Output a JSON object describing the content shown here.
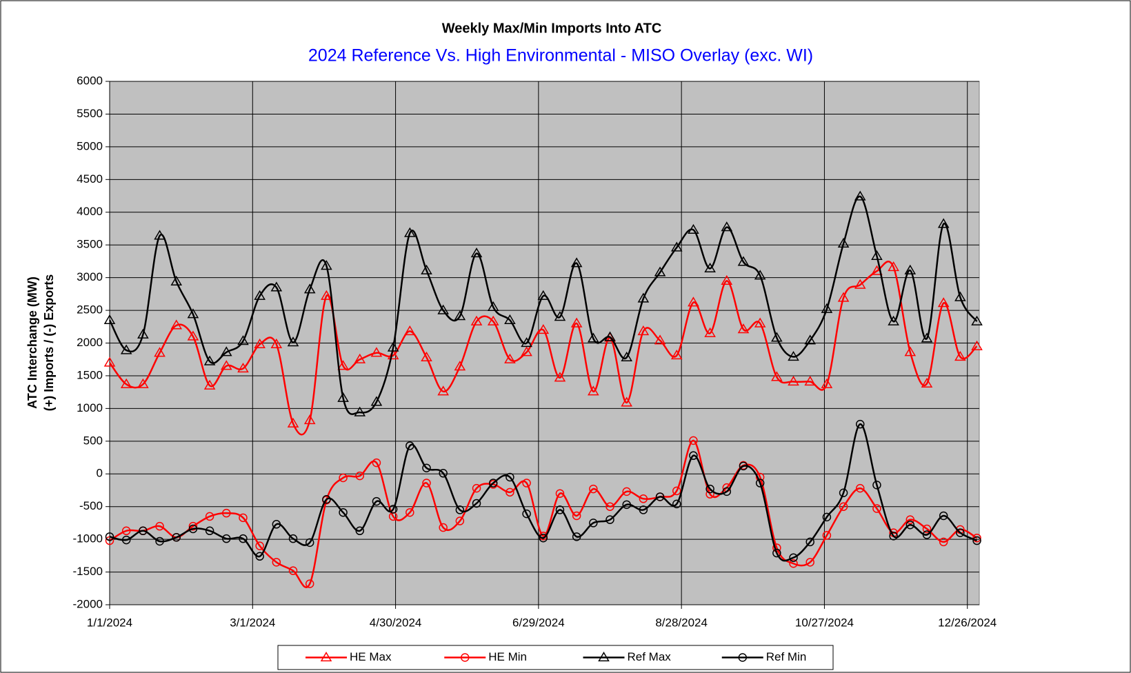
{
  "chart_data": {
    "type": "line",
    "title": "Weekly Max/Min Imports Into ATC",
    "subtitle": "2024 Reference Vs. High Environmental - MISO Overlay (exc. WI)",
    "ylabel": [
      "ATC Interchange (MW)",
      "(+) Imports / (-) Exports"
    ],
    "x": [
      "1/1/2024",
      "1/8/2024",
      "1/15/2024",
      "1/22/2024",
      "1/29/2024",
      "2/5/2024",
      "2/12/2024",
      "2/19/2024",
      "2/26/2024",
      "3/4/2024",
      "3/11/2024",
      "3/18/2024",
      "3/25/2024",
      "4/1/2024",
      "4/8/2024",
      "4/15/2024",
      "4/22/2024",
      "4/29/2024",
      "5/6/2024",
      "5/13/2024",
      "5/20/2024",
      "5/27/2024",
      "6/3/2024",
      "6/10/2024",
      "6/17/2024",
      "6/24/2024",
      "7/1/2024",
      "7/8/2024",
      "7/15/2024",
      "7/22/2024",
      "7/29/2024",
      "8/5/2024",
      "8/12/2024",
      "8/19/2024",
      "8/26/2024",
      "9/2/2024",
      "9/9/2024",
      "9/16/2024",
      "9/23/2024",
      "9/30/2024",
      "10/7/2024",
      "10/14/2024",
      "10/21/2024",
      "10/28/2024",
      "11/4/2024",
      "11/11/2024",
      "11/18/2024",
      "11/25/2024",
      "12/2/2024",
      "12/9/2024",
      "12/16/2024",
      "12/23/2024",
      "12/30/2024"
    ],
    "series": [
      {
        "name": "HE Max",
        "color": "#ff0000",
        "marker": "triangle",
        "values": [
          1700,
          1370,
          1370,
          1850,
          2270,
          2100,
          1350,
          1650,
          1610,
          1980,
          1980,
          770,
          820,
          2720,
          1650,
          1750,
          1850,
          1810,
          2180,
          1780,
          1260,
          1640,
          2330,
          2330,
          1750,
          1860,
          2200,
          1470,
          2300,
          1260,
          2080,
          1090,
          2180,
          2040,
          1810,
          2620,
          2150,
          2950,
          2210,
          2300,
          1480,
          1410,
          1410,
          1370,
          2690,
          2890,
          3100,
          3160,
          1860,
          1380,
          2610,
          1790,
          1950
        ]
      },
      {
        "name": "HE Min",
        "color": "#ff0000",
        "marker": "circle",
        "values": [
          -1020,
          -870,
          -870,
          -800,
          -970,
          -800,
          -650,
          -600,
          -670,
          -1100,
          -1350,
          -1480,
          -1680,
          -400,
          -60,
          -30,
          170,
          -650,
          -590,
          -140,
          -820,
          -720,
          -220,
          -160,
          -280,
          -140,
          -950,
          -300,
          -640,
          -230,
          -500,
          -270,
          -380,
          -350,
          -260,
          510,
          -310,
          -210,
          130,
          -50,
          -1130,
          -1370,
          -1350,
          -940,
          -500,
          -220,
          -530,
          -900,
          -700,
          -840,
          -1040,
          -850,
          -980
        ]
      },
      {
        "name": "Ref Max",
        "color": "#000000",
        "marker": "triangle",
        "values": [
          2350,
          1890,
          2130,
          3640,
          2940,
          2440,
          1720,
          1860,
          2030,
          2720,
          2850,
          2010,
          2820,
          3180,
          1160,
          940,
          1100,
          1930,
          3680,
          3110,
          2500,
          2410,
          3370,
          2550,
          2350,
          2000,
          2720,
          2400,
          3220,
          2070,
          2090,
          1780,
          2680,
          3080,
          3460,
          3730,
          3140,
          3770,
          3240,
          3030,
          2080,
          1790,
          2040,
          2520,
          3520,
          4240,
          3330,
          2330,
          3110,
          2070,
          3820,
          2700,
          2330
        ]
      },
      {
        "name": "Ref Min",
        "color": "#000000",
        "marker": "circle",
        "values": [
          -960,
          -1010,
          -870,
          -1030,
          -970,
          -840,
          -870,
          -990,
          -990,
          -1260,
          -770,
          -990,
          -1050,
          -390,
          -590,
          -870,
          -420,
          -540,
          430,
          90,
          10,
          -550,
          -450,
          -140,
          -50,
          -610,
          -980,
          -550,
          -960,
          -750,
          -700,
          -470,
          -550,
          -350,
          -460,
          280,
          -230,
          -270,
          120,
          -140,
          -1210,
          -1280,
          -1040,
          -660,
          -290,
          760,
          -170,
          -950,
          -780,
          -930,
          -640,
          -900,
          -1020
        ]
      }
    ],
    "xlim": [
      "1/1/2024",
      "12/31/2024"
    ],
    "xticks": [
      "1/1/2024",
      "3/1/2024",
      "4/30/2024",
      "6/29/2024",
      "8/28/2024",
      "10/27/2024",
      "12/26/2024"
    ],
    "ylim": [
      -2000,
      6000
    ],
    "yticks": [
      -2000,
      -1500,
      -1000,
      -500,
      0,
      500,
      1000,
      1500,
      2000,
      2500,
      3000,
      3500,
      4000,
      4500,
      5000,
      5500,
      6000
    ],
    "grid": true,
    "smooth": true,
    "plot_background": "#c0c0c0",
    "legend": "bottom"
  }
}
